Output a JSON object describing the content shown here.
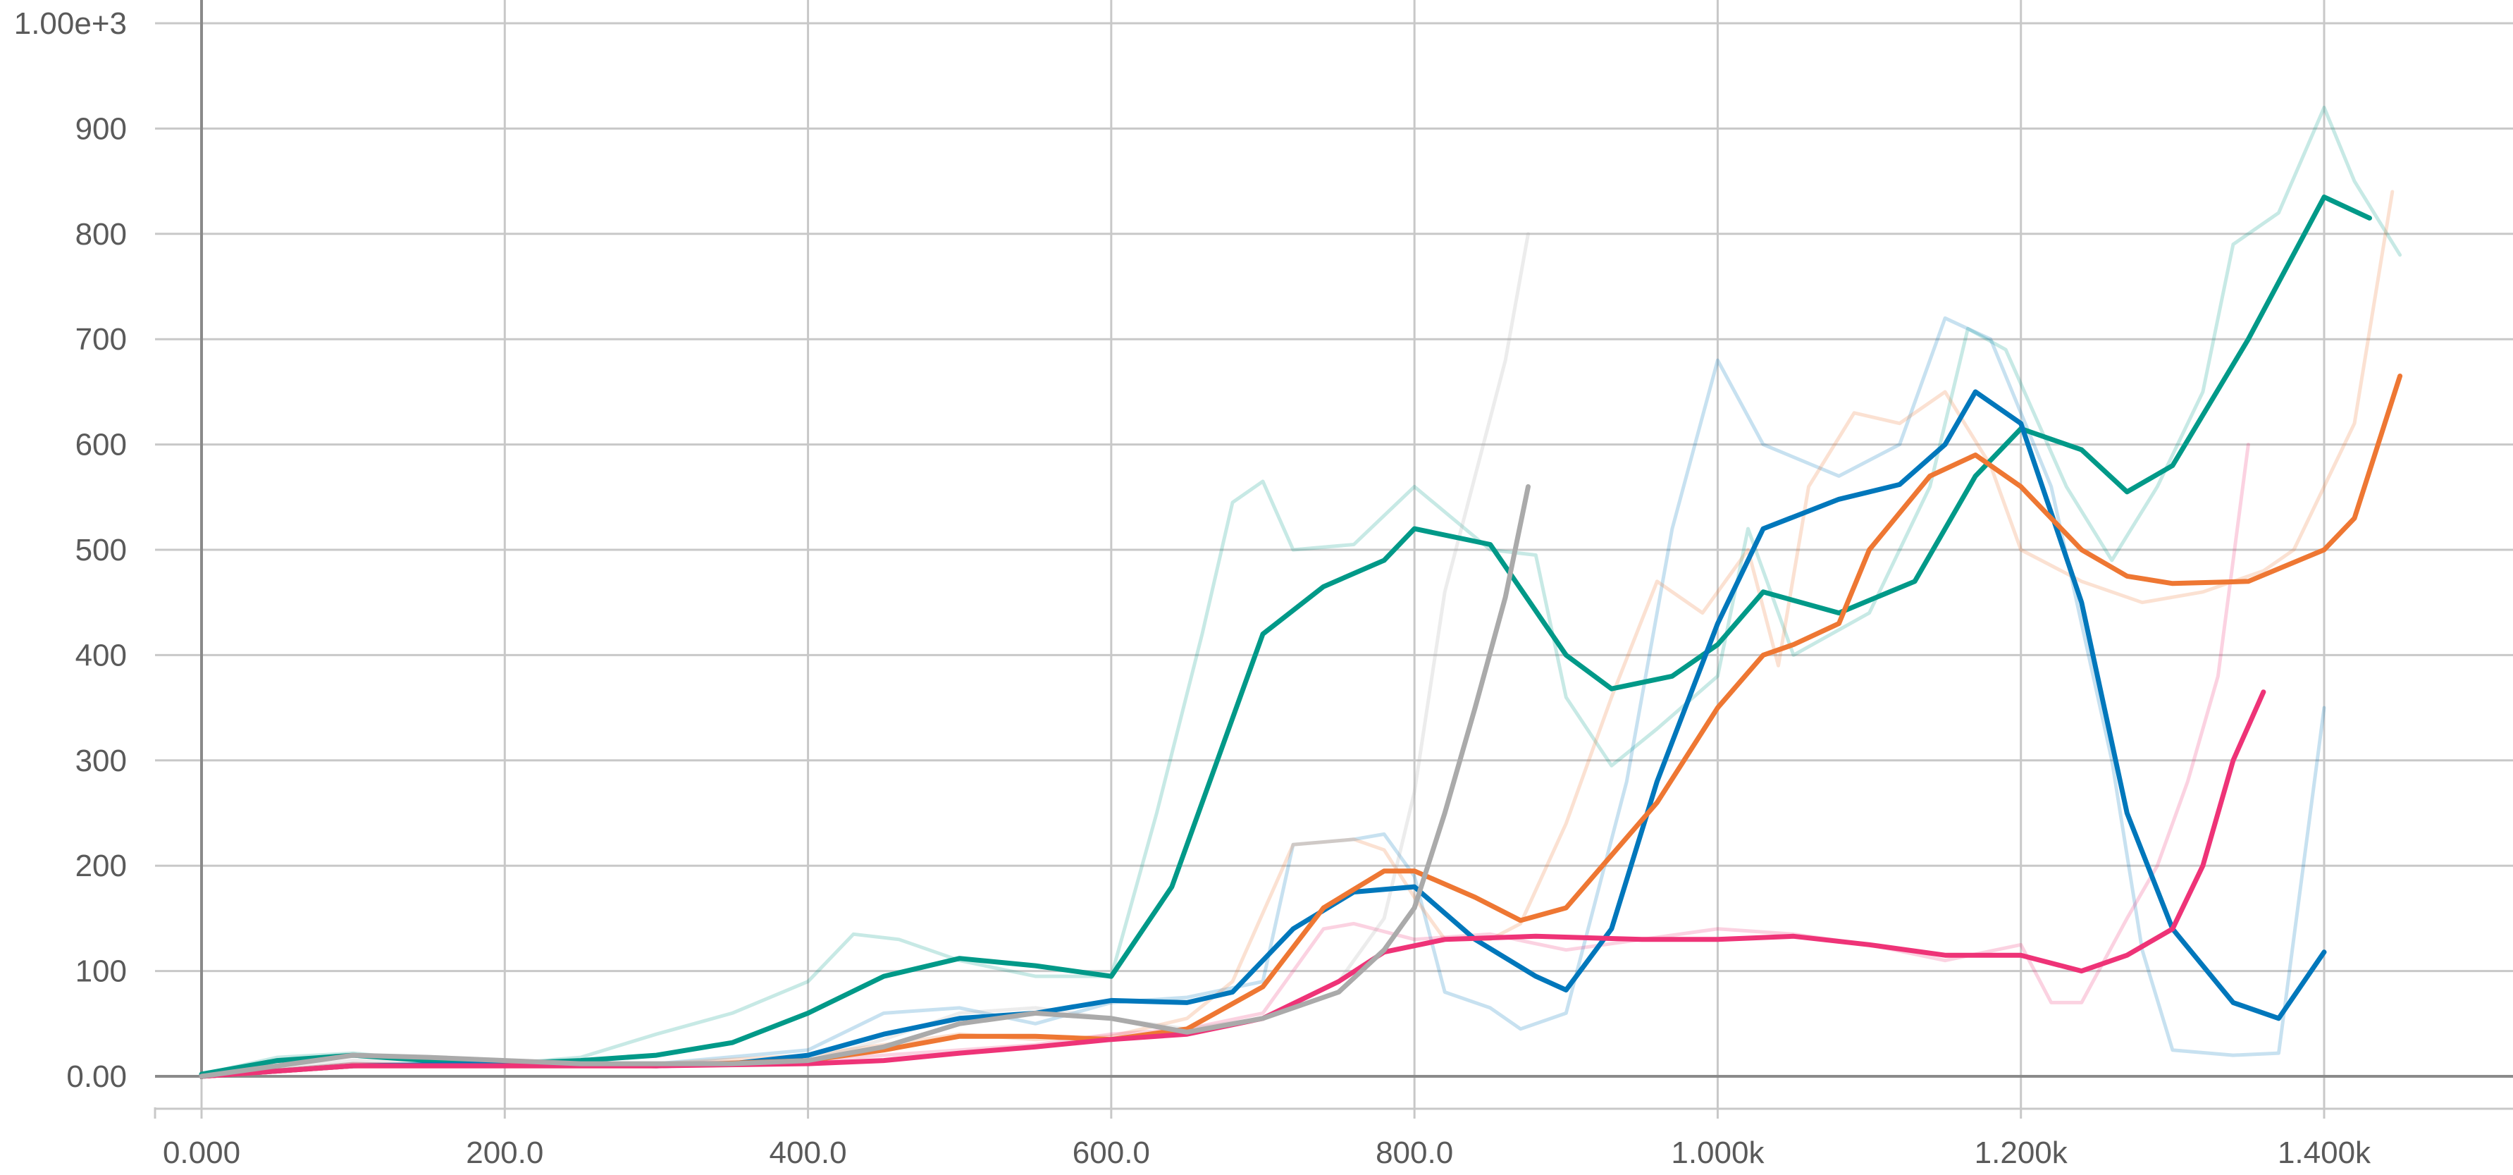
{
  "chart_data": {
    "type": "line",
    "title": "",
    "xlabel": "",
    "ylabel": "",
    "xlim": [
      -60,
      1570
    ],
    "ylim": [
      -30,
      1000
    ],
    "x_ticks": [
      0,
      200,
      400,
      600,
      800,
      1000,
      1200,
      1400
    ],
    "x_tick_labels": [
      "0.000",
      "200.0",
      "400.0",
      "600.0",
      "800.0",
      "1.000k",
      "1.200k",
      "1.400k"
    ],
    "y_ticks": [
      0,
      100,
      200,
      300,
      400,
      500,
      600,
      700,
      800,
      900,
      1000
    ],
    "y_tick_labels": [
      "0.00",
      "100",
      "200",
      "300",
      "400",
      "500",
      "600",
      "700",
      "800",
      "900",
      "1.00e+3"
    ],
    "grid": true,
    "legend": "none",
    "series": [
      {
        "color": "#009988",
        "smoothed": [
          [
            0,
            2
          ],
          [
            50,
            15
          ],
          [
            100,
            20
          ],
          [
            150,
            15
          ],
          [
            200,
            12
          ],
          [
            250,
            15
          ],
          [
            300,
            20
          ],
          [
            350,
            32
          ],
          [
            400,
            60
          ],
          [
            450,
            95
          ],
          [
            500,
            112
          ],
          [
            550,
            105
          ],
          [
            600,
            95
          ],
          [
            640,
            180
          ],
          [
            680,
            340
          ],
          [
            700,
            420
          ],
          [
            740,
            465
          ],
          [
            780,
            490
          ],
          [
            800,
            520
          ],
          [
            850,
            505
          ],
          [
            900,
            400
          ],
          [
            930,
            368
          ],
          [
            970,
            380
          ],
          [
            1000,
            410
          ],
          [
            1030,
            460
          ],
          [
            1080,
            440
          ],
          [
            1130,
            470
          ],
          [
            1170,
            570
          ],
          [
            1200,
            615
          ],
          [
            1240,
            595
          ],
          [
            1270,
            555
          ],
          [
            1300,
            580
          ],
          [
            1350,
            700
          ],
          [
            1400,
            835
          ],
          [
            1430,
            815
          ]
        ],
        "raw": [
          [
            0,
            2
          ],
          [
            50,
            18
          ],
          [
            100,
            22
          ],
          [
            150,
            15
          ],
          [
            200,
            12
          ],
          [
            250,
            18
          ],
          [
            300,
            40
          ],
          [
            350,
            60
          ],
          [
            400,
            90
          ],
          [
            430,
            135
          ],
          [
            460,
            130
          ],
          [
            500,
            110
          ],
          [
            550,
            95
          ],
          [
            600,
            95
          ],
          [
            630,
            250
          ],
          [
            660,
            420
          ],
          [
            680,
            545
          ],
          [
            700,
            565
          ],
          [
            720,
            500
          ],
          [
            760,
            505
          ],
          [
            800,
            560
          ],
          [
            850,
            500
          ],
          [
            880,
            495
          ],
          [
            900,
            360
          ],
          [
            930,
            295
          ],
          [
            960,
            330
          ],
          [
            1000,
            380
          ],
          [
            1020,
            520
          ],
          [
            1050,
            400
          ],
          [
            1100,
            440
          ],
          [
            1140,
            560
          ],
          [
            1165,
            710
          ],
          [
            1190,
            690
          ],
          [
            1230,
            560
          ],
          [
            1260,
            490
          ],
          [
            1290,
            560
          ],
          [
            1320,
            650
          ],
          [
            1340,
            790
          ],
          [
            1370,
            820
          ],
          [
            1400,
            920
          ],
          [
            1420,
            850
          ],
          [
            1450,
            780
          ]
        ]
      },
      {
        "color": "#0077bb",
        "smoothed": [
          [
            0,
            0
          ],
          [
            100,
            10
          ],
          [
            200,
            12
          ],
          [
            300,
            10
          ],
          [
            350,
            12
          ],
          [
            400,
            20
          ],
          [
            450,
            40
          ],
          [
            500,
            55
          ],
          [
            550,
            60
          ],
          [
            600,
            72
          ],
          [
            650,
            70
          ],
          [
            680,
            80
          ],
          [
            720,
            140
          ],
          [
            760,
            175
          ],
          [
            800,
            180
          ],
          [
            840,
            130
          ],
          [
            880,
            95
          ],
          [
            900,
            82
          ],
          [
            930,
            140
          ],
          [
            960,
            280
          ],
          [
            1000,
            430
          ],
          [
            1030,
            520
          ],
          [
            1080,
            548
          ],
          [
            1120,
            562
          ],
          [
            1150,
            600
          ],
          [
            1170,
            650
          ],
          [
            1200,
            620
          ],
          [
            1240,
            450
          ],
          [
            1270,
            250
          ],
          [
            1300,
            140
          ],
          [
            1340,
            70
          ],
          [
            1370,
            55
          ],
          [
            1400,
            118
          ]
        ],
        "raw": [
          [
            0,
            0
          ],
          [
            100,
            12
          ],
          [
            200,
            10
          ],
          [
            300,
            12
          ],
          [
            400,
            25
          ],
          [
            450,
            60
          ],
          [
            500,
            65
          ],
          [
            550,
            50
          ],
          [
            600,
            70
          ],
          [
            650,
            75
          ],
          [
            700,
            90
          ],
          [
            720,
            220
          ],
          [
            760,
            225
          ],
          [
            780,
            230
          ],
          [
            800,
            190
          ],
          [
            820,
            80
          ],
          [
            850,
            65
          ],
          [
            870,
            45
          ],
          [
            900,
            60
          ],
          [
            940,
            280
          ],
          [
            970,
            520
          ],
          [
            1000,
            680
          ],
          [
            1030,
            600
          ],
          [
            1080,
            570
          ],
          [
            1120,
            600
          ],
          [
            1150,
            720
          ],
          [
            1180,
            700
          ],
          [
            1220,
            560
          ],
          [
            1260,
            300
          ],
          [
            1280,
            120
          ],
          [
            1300,
            25
          ],
          [
            1340,
            20
          ],
          [
            1370,
            22
          ],
          [
            1400,
            350
          ]
        ]
      },
      {
        "color": "#ee7733",
        "smoothed": [
          [
            0,
            0
          ],
          [
            100,
            10
          ],
          [
            200,
            10
          ],
          [
            300,
            10
          ],
          [
            400,
            15
          ],
          [
            450,
            25
          ],
          [
            500,
            38
          ],
          [
            550,
            38
          ],
          [
            600,
            35
          ],
          [
            650,
            45
          ],
          [
            700,
            85
          ],
          [
            740,
            160
          ],
          [
            780,
            195
          ],
          [
            800,
            195
          ],
          [
            840,
            170
          ],
          [
            870,
            148
          ],
          [
            900,
            160
          ],
          [
            930,
            210
          ],
          [
            960,
            260
          ],
          [
            1000,
            350
          ],
          [
            1030,
            400
          ],
          [
            1050,
            410
          ],
          [
            1080,
            430
          ],
          [
            1100,
            500
          ],
          [
            1140,
            570
          ],
          [
            1170,
            590
          ],
          [
            1200,
            560
          ],
          [
            1240,
            500
          ],
          [
            1270,
            475
          ],
          [
            1300,
            468
          ],
          [
            1350,
            470
          ],
          [
            1400,
            500
          ],
          [
            1420,
            530
          ],
          [
            1450,
            665
          ]
        ],
        "raw": [
          [
            0,
            0
          ],
          [
            100,
            12
          ],
          [
            200,
            10
          ],
          [
            300,
            12
          ],
          [
            400,
            20
          ],
          [
            450,
            30
          ],
          [
            500,
            40
          ],
          [
            550,
            35
          ],
          [
            600,
            38
          ],
          [
            650,
            55
          ],
          [
            680,
            90
          ],
          [
            720,
            220
          ],
          [
            760,
            225
          ],
          [
            780,
            215
          ],
          [
            800,
            170
          ],
          [
            820,
            130
          ],
          [
            850,
            130
          ],
          [
            870,
            145
          ],
          [
            900,
            240
          ],
          [
            930,
            360
          ],
          [
            960,
            470
          ],
          [
            990,
            440
          ],
          [
            1020,
            500
          ],
          [
            1040,
            390
          ],
          [
            1060,
            560
          ],
          [
            1090,
            630
          ],
          [
            1120,
            620
          ],
          [
            1150,
            650
          ],
          [
            1180,
            580
          ],
          [
            1200,
            500
          ],
          [
            1240,
            470
          ],
          [
            1280,
            450
          ],
          [
            1320,
            460
          ],
          [
            1360,
            480
          ],
          [
            1380,
            500
          ],
          [
            1420,
            620
          ],
          [
            1445,
            840
          ]
        ]
      },
      {
        "color": "#ee3377",
        "smoothed": [
          [
            0,
            0
          ],
          [
            100,
            10
          ],
          [
            200,
            10
          ],
          [
            300,
            10
          ],
          [
            400,
            12
          ],
          [
            450,
            15
          ],
          [
            500,
            22
          ],
          [
            550,
            28
          ],
          [
            600,
            35
          ],
          [
            650,
            40
          ],
          [
            700,
            55
          ],
          [
            750,
            90
          ],
          [
            780,
            118
          ],
          [
            820,
            130
          ],
          [
            880,
            133
          ],
          [
            950,
            130
          ],
          [
            1000,
            130
          ],
          [
            1050,
            133
          ],
          [
            1100,
            125
          ],
          [
            1150,
            115
          ],
          [
            1200,
            115
          ],
          [
            1240,
            100
          ],
          [
            1270,
            115
          ],
          [
            1300,
            140
          ],
          [
            1320,
            200
          ],
          [
            1340,
            300
          ],
          [
            1360,
            365
          ]
        ],
        "raw": [
          [
            0,
            0
          ],
          [
            100,
            12
          ],
          [
            200,
            10
          ],
          [
            300,
            12
          ],
          [
            400,
            15
          ],
          [
            500,
            25
          ],
          [
            550,
            30
          ],
          [
            600,
            40
          ],
          [
            650,
            45
          ],
          [
            700,
            60
          ],
          [
            740,
            140
          ],
          [
            760,
            145
          ],
          [
            800,
            130
          ],
          [
            850,
            135
          ],
          [
            900,
            120
          ],
          [
            950,
            130
          ],
          [
            1000,
            140
          ],
          [
            1050,
            135
          ],
          [
            1100,
            125
          ],
          [
            1150,
            110
          ],
          [
            1200,
            125
          ],
          [
            1220,
            70
          ],
          [
            1240,
            70
          ],
          [
            1270,
            150
          ],
          [
            1290,
            200
          ],
          [
            1310,
            280
          ],
          [
            1330,
            380
          ],
          [
            1350,
            600
          ]
        ]
      },
      {
        "color": "#aaaaaa",
        "smoothed": [
          [
            0,
            0
          ],
          [
            50,
            10
          ],
          [
            100,
            20
          ],
          [
            150,
            18
          ],
          [
            200,
            15
          ],
          [
            250,
            12
          ],
          [
            300,
            12
          ],
          [
            350,
            12
          ],
          [
            400,
            15
          ],
          [
            450,
            28
          ],
          [
            500,
            50
          ],
          [
            550,
            60
          ],
          [
            600,
            55
          ],
          [
            650,
            42
          ],
          [
            700,
            55
          ],
          [
            750,
            80
          ],
          [
            780,
            120
          ],
          [
            800,
            160
          ],
          [
            820,
            250
          ],
          [
            840,
            350
          ],
          [
            860,
            455
          ],
          [
            875,
            560
          ]
        ],
        "raw": [
          [
            0,
            0
          ],
          [
            100,
            15
          ],
          [
            200,
            12
          ],
          [
            300,
            12
          ],
          [
            400,
            15
          ],
          [
            450,
            35
          ],
          [
            500,
            60
          ],
          [
            550,
            65
          ],
          [
            600,
            55
          ],
          [
            650,
            45
          ],
          [
            700,
            55
          ],
          [
            750,
            90
          ],
          [
            780,
            150
          ],
          [
            800,
            270
          ],
          [
            820,
            460
          ],
          [
            840,
            570
          ],
          [
            860,
            680
          ],
          [
            875,
            800
          ]
        ]
      }
    ]
  }
}
